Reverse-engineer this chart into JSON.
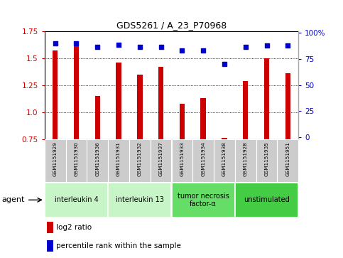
{
  "title": "GDS5261 / A_23_P70968",
  "samples": [
    "GSM1151929",
    "GSM1151930",
    "GSM1151936",
    "GSM1151931",
    "GSM1151932",
    "GSM1151937",
    "GSM1151933",
    "GSM1151934",
    "GSM1151938",
    "GSM1151928",
    "GSM1151935",
    "GSM1151951"
  ],
  "log2_ratio": [
    1.57,
    1.62,
    1.15,
    1.46,
    1.35,
    1.42,
    1.08,
    1.13,
    0.76,
    1.29,
    1.5,
    1.36
  ],
  "percentile": [
    90,
    90,
    87,
    89,
    87,
    87,
    83,
    83,
    70,
    87,
    88,
    88
  ],
  "ylim": [
    0.75,
    1.75
  ],
  "yticks_left": [
    0.75,
    1.0,
    1.25,
    1.5,
    1.75
  ],
  "yticks_right": [
    0,
    25,
    50,
    75,
    100
  ],
  "agents": [
    {
      "label": "interleukin 4",
      "start": 0,
      "end": 3,
      "color": "#c8f5c8"
    },
    {
      "label": "interleukin 13",
      "start": 3,
      "end": 6,
      "color": "#c8f5c8"
    },
    {
      "label": "tumor necrosis\nfactor-α",
      "start": 6,
      "end": 9,
      "color": "#66dd66"
    },
    {
      "label": "unstimulated",
      "start": 9,
      "end": 12,
      "color": "#44cc44"
    }
  ],
  "bar_color": "#cc0000",
  "dot_color": "#0000cc",
  "background_color": "#ffffff",
  "label_bg_color": "#cccccc",
  "left_tick_color": "#cc0000",
  "right_tick_color": "#0000cc"
}
